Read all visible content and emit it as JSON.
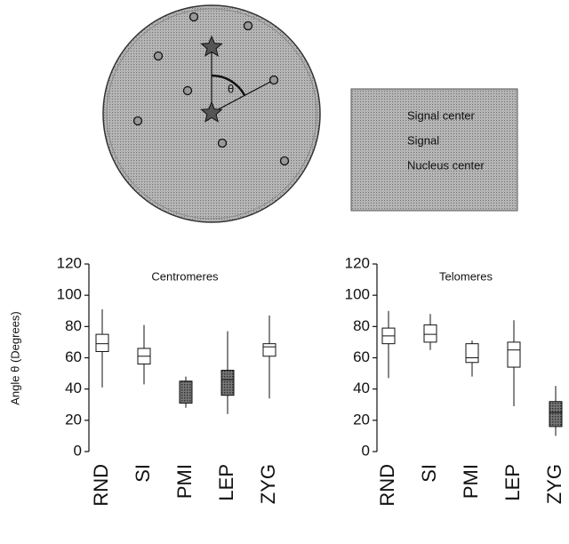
{
  "diagram": {
    "angle_label": "θ",
    "legend": [
      "Signal center",
      "Signal",
      "Nucleus center"
    ]
  },
  "chart_data": [
    {
      "type": "box",
      "title": "Centromeres",
      "ylabel": "Angle θ (Degrees)",
      "categories": [
        "RND",
        "SI",
        "PMI",
        "LEP",
        "ZYG"
      ],
      "boxes": [
        {
          "whislo": 41,
          "q1": 64,
          "med": 69,
          "q3": 75,
          "whishi": 91
        },
        {
          "whislo": 43,
          "q1": 56,
          "med": 61,
          "q3": 66,
          "whishi": 81
        },
        {
          "whislo": 28,
          "q1": 31,
          "med": 45,
          "q3": 45,
          "whishi": 48
        },
        {
          "whislo": 24,
          "q1": 36,
          "med": 46,
          "q3": 52,
          "whishi": 77
        },
        {
          "whislo": 34,
          "q1": 61,
          "med": 67,
          "q3": 69,
          "whishi": 87
        }
      ],
      "box_colors": [
        "#ffffff",
        "#ffffff",
        "#666666",
        "#666666",
        "#ffffff"
      ],
      "ylim": [
        0,
        120
      ],
      "yticks": [
        0,
        20,
        40,
        60,
        80,
        100,
        120
      ]
    },
    {
      "type": "box",
      "title": "Telomeres",
      "categories": [
        "RND",
        "SI",
        "PMI",
        "LEP",
        "ZYG"
      ],
      "boxes": [
        {
          "whislo": 47,
          "q1": 69,
          "med": 74,
          "q3": 79,
          "whishi": 90
        },
        {
          "whislo": 65,
          "q1": 70,
          "med": 75,
          "q3": 81,
          "whishi": 88
        },
        {
          "whislo": 48,
          "q1": 57,
          "med": 60,
          "q3": 69,
          "whishi": 71
        },
        {
          "whislo": 29,
          "q1": 54,
          "med": 65,
          "q3": 70,
          "whishi": 84
        },
        {
          "whislo": 10,
          "q1": 16,
          "med": 25,
          "q3": 32,
          "whishi": 42
        }
      ],
      "box_colors": [
        "#ffffff",
        "#ffffff",
        "#ffffff",
        "#ffffff",
        "#666666"
      ],
      "ylim": [
        0,
        120
      ],
      "yticks": [
        0,
        20,
        40,
        60,
        80,
        100,
        120
      ]
    }
  ]
}
